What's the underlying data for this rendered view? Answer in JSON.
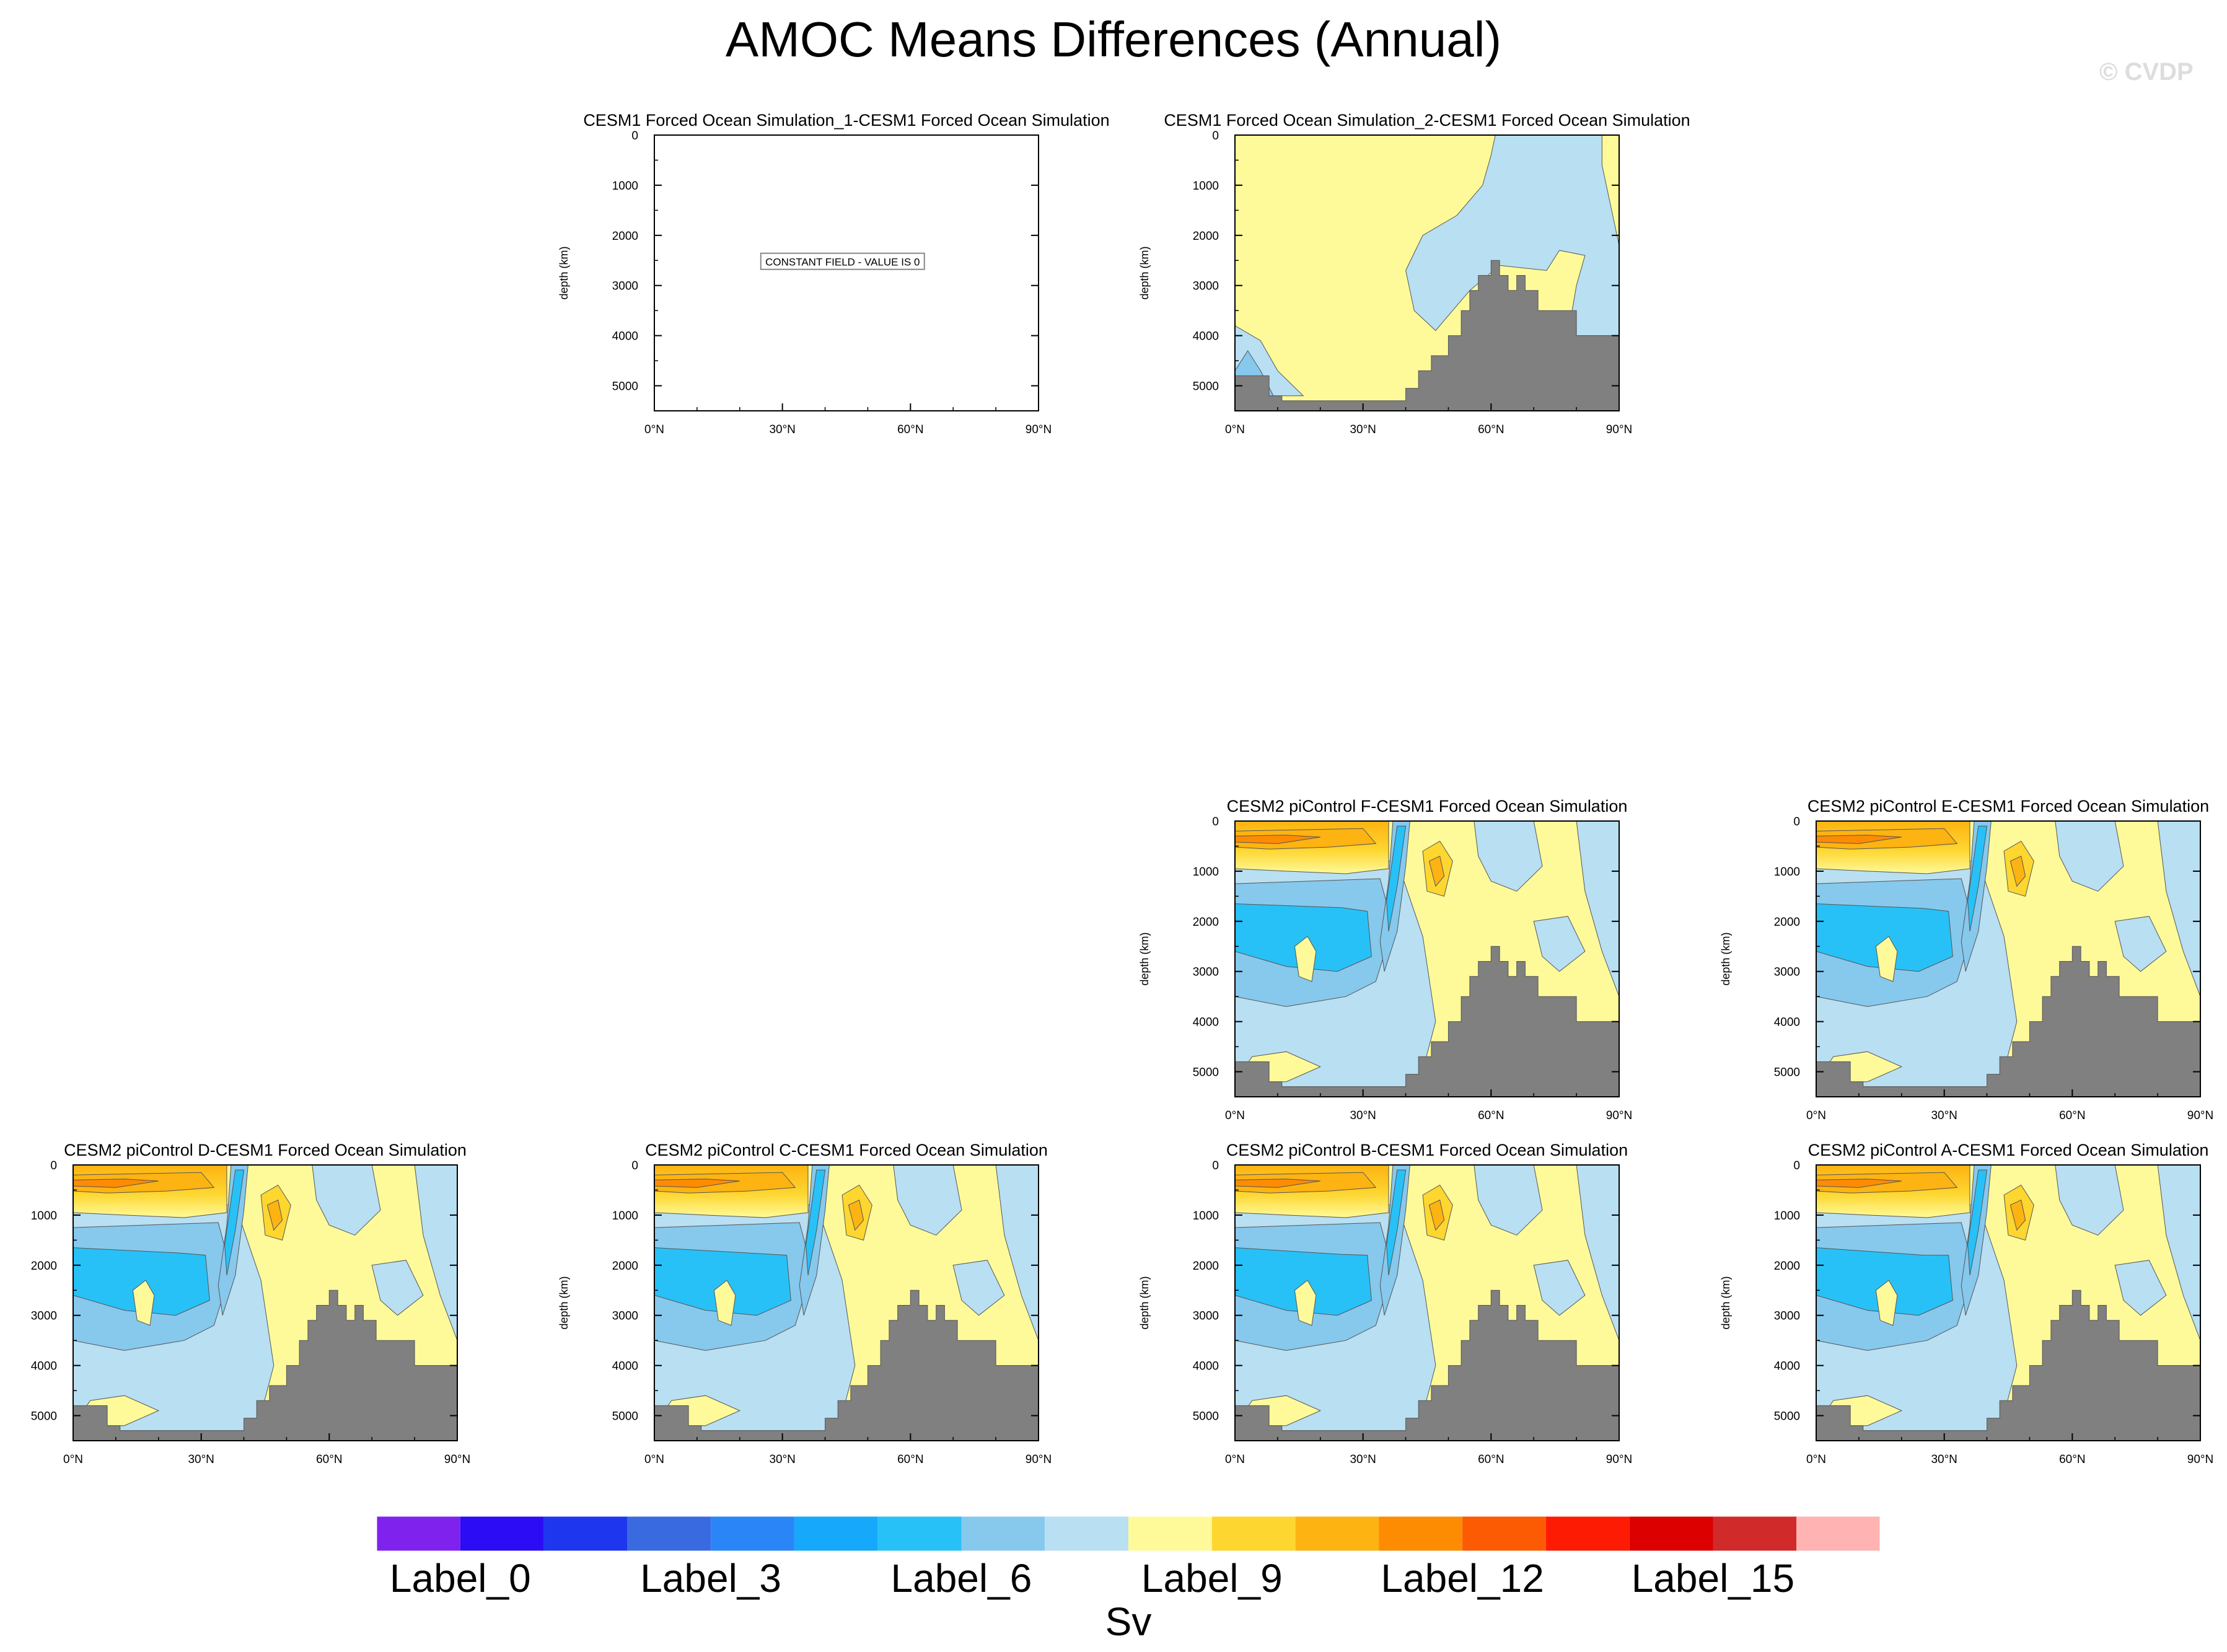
{
  "title": "AMOC Means Differences (Annual)",
  "watermark": "© CVDP",
  "chart_data": [
    {
      "type": "contour",
      "title": "CESM1 Forced Ocean Simulation_1-CESM1 Forced Ocean Simulation",
      "ylabel": "depth (km)",
      "yticks": [
        "0",
        "1000",
        "2000",
        "3000",
        "4000",
        "5000"
      ],
      "xticks": [
        "0°N",
        "30°N",
        "60°N",
        "90°N"
      ],
      "xlim": [
        0,
        90
      ],
      "ylim": [
        0,
        5500
      ],
      "constant_field": "CONSTANT FIELD - VALUE IS 0"
    },
    {
      "type": "contour",
      "title": "CESM1 Forced Ocean Simulation_2-CESM1 Forced Ocean Simulation",
      "ylabel": "depth (km)",
      "yticks": [
        "0",
        "1000",
        "2000",
        "3000",
        "4000",
        "5000"
      ],
      "xticks": [
        "0°N",
        "30°N",
        "60°N",
        "90°N"
      ],
      "xlim": [
        0,
        90
      ],
      "ylim": [
        0,
        5500
      ]
    },
    {
      "type": "contour",
      "title": "CESM2 piControl F-CESM1 Forced Ocean Simulation",
      "ylabel": "depth (km)",
      "yticks": [
        "0",
        "1000",
        "2000",
        "3000",
        "4000",
        "5000"
      ],
      "xticks": [
        "0°N",
        "30°N",
        "60°N",
        "90°N"
      ],
      "xlim": [
        0,
        90
      ],
      "ylim": [
        0,
        5500
      ]
    },
    {
      "type": "contour",
      "title": "CESM2 piControl E-CESM1 Forced Ocean Simulation",
      "ylabel": "depth (km)",
      "yticks": [
        "0",
        "1000",
        "2000",
        "3000",
        "4000",
        "5000"
      ],
      "xticks": [
        "0°N",
        "30°N",
        "60°N",
        "90°N"
      ],
      "xlim": [
        0,
        90
      ],
      "ylim": [
        0,
        5500
      ]
    },
    {
      "type": "contour",
      "title": "CESM2 piControl D-CESM1 Forced Ocean Simulation",
      "ylabel": "depth (km)",
      "yticks": [
        "0",
        "1000",
        "2000",
        "3000",
        "4000",
        "5000"
      ],
      "xticks": [
        "0°N",
        "30°N",
        "60°N",
        "90°N"
      ],
      "xlim": [
        0,
        90
      ],
      "ylim": [
        0,
        5500
      ]
    },
    {
      "type": "contour",
      "title": "CESM2 piControl C-CESM1 Forced Ocean Simulation",
      "ylabel": "depth (km)",
      "yticks": [
        "0",
        "1000",
        "2000",
        "3000",
        "4000",
        "5000"
      ],
      "xticks": [
        "0°N",
        "30°N",
        "60°N",
        "90°N"
      ],
      "xlim": [
        0,
        90
      ],
      "ylim": [
        0,
        5500
      ]
    },
    {
      "type": "contour",
      "title": "CESM2 piControl B-CESM1 Forced Ocean Simulation",
      "ylabel": "depth (km)",
      "yticks": [
        "0",
        "1000",
        "2000",
        "3000",
        "4000",
        "5000"
      ],
      "xticks": [
        "0°N",
        "30°N",
        "60°N",
        "90°N"
      ],
      "xlim": [
        0,
        90
      ],
      "ylim": [
        0,
        5500
      ]
    },
    {
      "type": "contour",
      "title": "CESM2 piControl A-CESM1 Forced Ocean Simulation",
      "ylabel": "depth (km)",
      "yticks": [
        "0",
        "1000",
        "2000",
        "3000",
        "4000",
        "5000"
      ],
      "xticks": [
        "0°N",
        "30°N",
        "60°N",
        "90°N"
      ],
      "xlim": [
        0,
        90
      ],
      "ylim": [
        0,
        5500
      ]
    }
  ],
  "colorbar": {
    "colors": [
      "#7f22ee",
      "#2b0cf5",
      "#1f36ef",
      "#3a6ae0",
      "#2a85f6",
      "#15a8fb",
      "#27c1f7",
      "#87c8ed",
      "#b8dff2",
      "#fefa9a",
      "#fed630",
      "#fdb311",
      "#fd8c03",
      "#fd5a04",
      "#fe1b04",
      "#dc0000",
      "#d12a2a",
      "#ffb3b3"
    ],
    "labels": [
      "Label_0",
      "Label_3",
      "Label_6",
      "Label_9",
      "Label_12",
      "Label_15"
    ],
    "units": "Sv"
  }
}
